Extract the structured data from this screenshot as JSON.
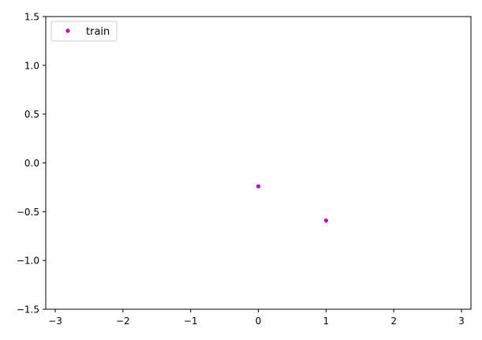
{
  "chart_data": {
    "type": "scatter",
    "title": "",
    "xlabel": "",
    "ylabel": "",
    "xlim": [
      -3.14,
      3.14
    ],
    "ylim": [
      -1.5,
      1.5
    ],
    "xticks": [
      -3,
      -2,
      -1,
      0,
      1,
      2,
      3
    ],
    "xtick_labels": [
      "−3",
      "−2",
      "−1",
      "0",
      "1",
      "2",
      "3"
    ],
    "yticks": [
      1.5,
      1.0,
      0.5,
      0.0,
      -0.5,
      -1.0,
      -1.5
    ],
    "ytick_labels": [
      "1.5",
      "1.0",
      "0.5",
      "0.0",
      "−0.5",
      "−1.0",
      "−1.5"
    ],
    "grid": false,
    "legend": {
      "position": "top-left"
    },
    "series": [
      {
        "name": "train",
        "color": "#bf00bf",
        "marker": "dot",
        "points": [
          {
            "x": 0,
            "y": -0.24
          },
          {
            "x": 1,
            "y": -0.59
          }
        ]
      }
    ]
  }
}
